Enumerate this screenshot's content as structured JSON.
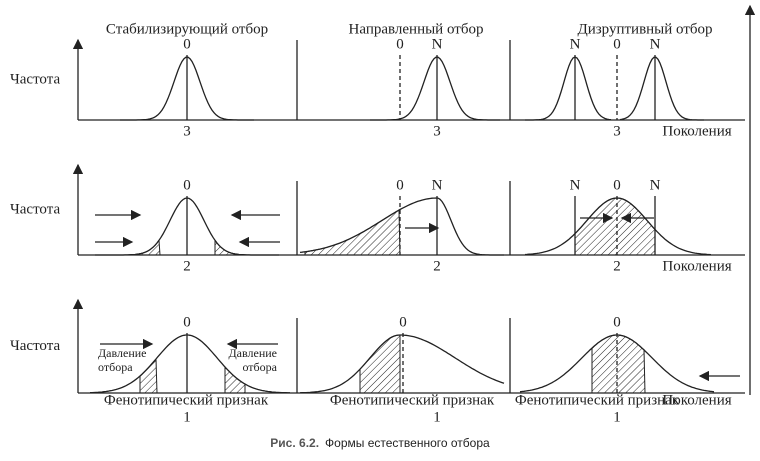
{
  "columns": [
    "Стабилизирующий отбор",
    "Направленный отбор",
    "Дизруптивный отбор"
  ],
  "rows": [
    {
      "y_label": "Частота",
      "x_label": "Поколения",
      "panels": [
        {
          "top": [
            "0"
          ],
          "stage": "3"
        },
        {
          "top": [
            "0",
            "N"
          ],
          "stage": "3"
        },
        {
          "top": [
            "N",
            "0",
            "N"
          ],
          "stage": "3"
        }
      ]
    },
    {
      "y_label": "Частота",
      "x_label": "Поколения",
      "panels": [
        {
          "top": [
            "0"
          ],
          "stage": "2"
        },
        {
          "top": [
            "0",
            "N"
          ],
          "stage": "2"
        },
        {
          "top": [
            "N",
            "0",
            "N"
          ],
          "stage": "2"
        }
      ]
    },
    {
      "y_label": "Частота",
      "x_label": "Поколения",
      "panels": [
        {
          "top": [
            "0"
          ],
          "stage": "1",
          "trait": "Фенотипический признак",
          "pressure_left": [
            "Давление",
            "отбора"
          ],
          "pressure_right": [
            "Давление",
            "отбора"
          ]
        },
        {
          "top": [
            "0"
          ],
          "stage": "1",
          "trait": "Фенотипический признак"
        },
        {
          "top": [
            "0"
          ],
          "stage": "1",
          "trait": "Фенотипический признак"
        }
      ]
    }
  ],
  "caption": {
    "number": "Рис. 6.2.",
    "text": "Формы естественного отбора"
  }
}
